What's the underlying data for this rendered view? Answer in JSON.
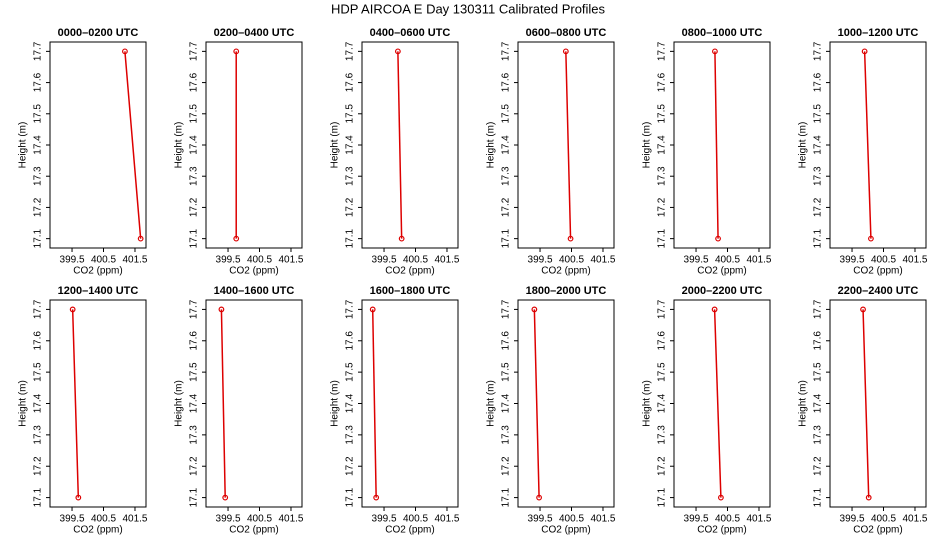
{
  "title": "HDP AIRCOA E  Day 130311  Calibrated Profiles",
  "chart_data": [
    {
      "type": "line",
      "title": "0000–0200 UTC",
      "xlabel": "CO2 (ppm)",
      "ylabel": "Height (m)",
      "color": "#dd0000",
      "x": [
        401.68,
        401.18
      ],
      "values": [
        17.1,
        17.7
      ],
      "xlim": [
        398.8,
        401.85
      ],
      "ylim": [
        17.07,
        17.73
      ],
      "xticks": [
        399.5,
        400.5,
        401.5
      ],
      "yticks": [
        17.1,
        17.2,
        17.3,
        17.4,
        17.5,
        17.6,
        17.7
      ]
    },
    {
      "type": "line",
      "title": "0200–0400 UTC",
      "xlabel": "CO2 (ppm)",
      "ylabel": "Height (m)",
      "color": "#dd0000",
      "x": [
        399.76,
        399.76
      ],
      "values": [
        17.1,
        17.7
      ],
      "xlim": [
        398.8,
        401.85
      ],
      "ylim": [
        17.07,
        17.73
      ],
      "xticks": [
        399.5,
        400.5,
        401.5
      ],
      "yticks": [
        17.1,
        17.2,
        17.3,
        17.4,
        17.5,
        17.6,
        17.7
      ]
    },
    {
      "type": "line",
      "title": "0400–0600 UTC",
      "xlabel": "CO2 (ppm)",
      "ylabel": "Height (m)",
      "color": "#dd0000",
      "x": [
        400.06,
        399.94
      ],
      "values": [
        17.1,
        17.7
      ],
      "xlim": [
        398.8,
        401.85
      ],
      "ylim": [
        17.07,
        17.73
      ],
      "xticks": [
        399.5,
        400.5,
        401.5
      ],
      "yticks": [
        17.1,
        17.2,
        17.3,
        17.4,
        17.5,
        17.6,
        17.7
      ]
    },
    {
      "type": "line",
      "title": "0600–0800 UTC",
      "xlabel": "CO2 (ppm)",
      "ylabel": "Height (m)",
      "color": "#dd0000",
      "x": [
        400.47,
        400.32
      ],
      "values": [
        17.1,
        17.7
      ],
      "xlim": [
        398.8,
        401.85
      ],
      "ylim": [
        17.07,
        17.73
      ],
      "xticks": [
        399.5,
        400.5,
        401.5
      ],
      "yticks": [
        17.1,
        17.2,
        17.3,
        17.4,
        17.5,
        17.6,
        17.7
      ]
    },
    {
      "type": "line",
      "title": "0800–1000 UTC",
      "xlabel": "CO2 (ppm)",
      "ylabel": "Height (m)",
      "color": "#dd0000",
      "x": [
        400.2,
        400.1
      ],
      "values": [
        17.1,
        17.7
      ],
      "xlim": [
        398.8,
        401.85
      ],
      "ylim": [
        17.07,
        17.73
      ],
      "xticks": [
        399.5,
        400.5,
        401.5
      ],
      "yticks": [
        17.1,
        17.2,
        17.3,
        17.4,
        17.5,
        17.6,
        17.7
      ]
    },
    {
      "type": "line",
      "title": "1000–1200 UTC",
      "xlabel": "CO2 (ppm)",
      "ylabel": "Height (m)",
      "color": "#dd0000",
      "x": [
        400.1,
        399.9
      ],
      "values": [
        17.1,
        17.7
      ],
      "xlim": [
        398.8,
        401.85
      ],
      "ylim": [
        17.07,
        17.73
      ],
      "xticks": [
        399.5,
        400.5,
        401.5
      ],
      "yticks": [
        17.1,
        17.2,
        17.3,
        17.4,
        17.5,
        17.6,
        17.7
      ]
    },
    {
      "type": "line",
      "title": "1200–1400 UTC",
      "xlabel": "CO2 (ppm)",
      "ylabel": "Height (m)",
      "color": "#dd0000",
      "x": [
        399.7,
        399.52
      ],
      "values": [
        17.1,
        17.7
      ],
      "xlim": [
        398.8,
        401.85
      ],
      "ylim": [
        17.07,
        17.73
      ],
      "xticks": [
        399.5,
        400.5,
        401.5
      ],
      "yticks": [
        17.1,
        17.2,
        17.3,
        17.4,
        17.5,
        17.6,
        17.7
      ]
    },
    {
      "type": "line",
      "title": "1400–1600 UTC",
      "xlabel": "CO2 (ppm)",
      "ylabel": "Height (m)",
      "color": "#dd0000",
      "x": [
        399.41,
        399.29
      ],
      "values": [
        17.1,
        17.7
      ],
      "xlim": [
        398.8,
        401.85
      ],
      "ylim": [
        17.07,
        17.73
      ],
      "xticks": [
        399.5,
        400.5,
        401.5
      ],
      "yticks": [
        17.1,
        17.2,
        17.3,
        17.4,
        17.5,
        17.6,
        17.7
      ]
    },
    {
      "type": "line",
      "title": "1600–1800 UTC",
      "xlabel": "CO2 (ppm)",
      "ylabel": "Height (m)",
      "color": "#dd0000",
      "x": [
        399.25,
        399.14
      ],
      "values": [
        17.1,
        17.7
      ],
      "xlim": [
        398.8,
        401.85
      ],
      "ylim": [
        17.07,
        17.73
      ],
      "xticks": [
        399.5,
        400.5,
        401.5
      ],
      "yticks": [
        17.1,
        17.2,
        17.3,
        17.4,
        17.5,
        17.6,
        17.7
      ]
    },
    {
      "type": "line",
      "title": "1800–2000 UTC",
      "xlabel": "CO2 (ppm)",
      "ylabel": "Height (m)",
      "color": "#dd0000",
      "x": [
        399.47,
        399.32
      ],
      "values": [
        17.1,
        17.7
      ],
      "xlim": [
        398.8,
        401.85
      ],
      "ylim": [
        17.07,
        17.73
      ],
      "xticks": [
        399.5,
        400.5,
        401.5
      ],
      "yticks": [
        17.1,
        17.2,
        17.3,
        17.4,
        17.5,
        17.6,
        17.7
      ]
    },
    {
      "type": "line",
      "title": "2000–2200 UTC",
      "xlabel": "CO2 (ppm)",
      "ylabel": "Height (m)",
      "color": "#dd0000",
      "x": [
        400.29,
        400.09
      ],
      "values": [
        17.1,
        17.7
      ],
      "xlim": [
        398.8,
        401.85
      ],
      "ylim": [
        17.07,
        17.73
      ],
      "xticks": [
        399.5,
        400.5,
        401.5
      ],
      "yticks": [
        17.1,
        17.2,
        17.3,
        17.4,
        17.5,
        17.6,
        17.7
      ]
    },
    {
      "type": "line",
      "title": "2200–2400 UTC",
      "xlabel": "CO2 (ppm)",
      "ylabel": "Height (m)",
      "color": "#dd0000",
      "x": [
        400.03,
        399.85
      ],
      "values": [
        17.1,
        17.7
      ],
      "xlim": [
        398.8,
        401.85
      ],
      "ylim": [
        17.07,
        17.73
      ],
      "xticks": [
        399.5,
        400.5,
        401.5
      ],
      "yticks": [
        17.1,
        17.2,
        17.3,
        17.4,
        17.5,
        17.6,
        17.7
      ]
    }
  ]
}
